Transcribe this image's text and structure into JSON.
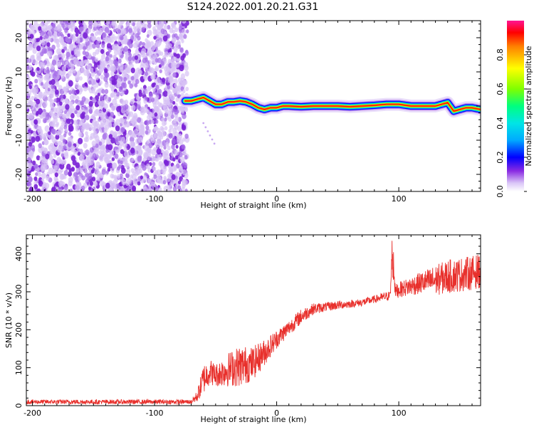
{
  "title": "S124.2022.001.20.21.G31",
  "colors": {
    "snr_line": "#e8302c",
    "noise_dots": "#8a2be2",
    "colormap": [
      "#ffffff",
      "#c9a9f2",
      "#7b2cdc",
      "#0000ff",
      "#00aaff",
      "#00e0e0",
      "#00ff7f",
      "#7fff00",
      "#ffff00",
      "#ff8c00",
      "#ff0000",
      "#ff1493"
    ]
  },
  "chart_data": [
    {
      "type": "heatmap",
      "xlabel": "Height of straight line (km)",
      "ylabel": "Frequency (Hz)",
      "xlim": [
        -205,
        167
      ],
      "ylim": [
        -25,
        25
      ],
      "xticks": [
        -200,
        -100,
        0,
        100
      ],
      "yticks": [
        -20,
        -10,
        0,
        10,
        20
      ],
      "colorbar": {
        "label": "Normalized spectral amplitude",
        "range": [
          0,
          1
        ],
        "ticks": [
          "0.0",
          "0.2",
          "0.4",
          "0.6",
          "0.8"
        ]
      },
      "noise_region_x": [
        -205,
        -73
      ],
      "ridge": {
        "x": [
          -75,
          -70,
          -65,
          -60,
          -55,
          -50,
          -45,
          -40,
          -35,
          -30,
          -25,
          -20,
          -15,
          -10,
          -5,
          0,
          5,
          10,
          20,
          30,
          40,
          50,
          60,
          70,
          80,
          90,
          100,
          110,
          120,
          130,
          135,
          140,
          145,
          150,
          155,
          160,
          167
        ],
        "freq": [
          1.5,
          1.5,
          2.0,
          2.5,
          1.5,
          0.5,
          0.5,
          1.2,
          1.2,
          1.5,
          1.2,
          0.5,
          -0.5,
          -1.0,
          -0.5,
          -0.5,
          0.0,
          0.0,
          -0.2,
          0.0,
          0.0,
          0.0,
          -0.2,
          0.0,
          0.2,
          0.5,
          0.5,
          0.0,
          0.0,
          0.0,
          0.5,
          1.0,
          -1.5,
          -1.0,
          -0.5,
          -0.5,
          -1.0
        ]
      }
    },
    {
      "type": "line",
      "xlabel": "Height of straight line (km)",
      "ylabel": "SNR (10 * v/v)",
      "xlim": [
        -205,
        167
      ],
      "ylim": [
        0,
        450
      ],
      "xticks": [
        -200,
        -100,
        0,
        100
      ],
      "yticks": [
        0,
        100,
        200,
        300,
        400
      ],
      "series": [
        {
          "x": [
            -205,
            -150,
            -100,
            -70,
            -65,
            -60,
            -55,
            -50,
            -40,
            -30,
            -20,
            -10,
            0,
            10,
            20,
            30,
            40,
            50,
            60,
            70,
            80,
            90,
            93,
            95,
            97,
            100,
            110,
            120,
            130,
            140,
            150,
            160,
            167
          ],
          "y": [
            10,
            10,
            10,
            10,
            25,
            70,
            90,
            80,
            95,
            105,
            110,
            140,
            175,
            205,
            235,
            255,
            260,
            265,
            268,
            272,
            280,
            288,
            290,
            420,
            300,
            305,
            315,
            325,
            330,
            340,
            345,
            350,
            355
          ],
          "spread": [
            6,
            6,
            6,
            6,
            15,
            40,
            35,
            30,
            45,
            55,
            45,
            35,
            25,
            20,
            20,
            15,
            12,
            12,
            10,
            10,
            10,
            12,
            12,
            30,
            20,
            20,
            25,
            30,
            40,
            45,
            45,
            45,
            45
          ]
        }
      ]
    }
  ]
}
